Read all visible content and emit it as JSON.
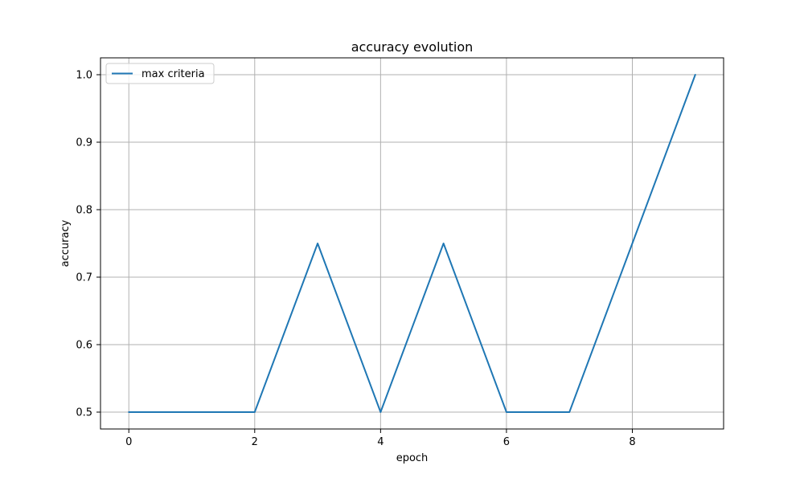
{
  "chart_data": {
    "type": "line",
    "title": "accuracy evolution",
    "xlabel": "epoch",
    "ylabel": "accuracy",
    "xlim": [
      -0.45,
      9.45
    ],
    "ylim": [
      0.475,
      1.025
    ],
    "x_ticks": [
      0,
      2,
      4,
      6,
      8
    ],
    "y_ticks": [
      0.5,
      0.6,
      0.7,
      0.8,
      0.9,
      1.0
    ],
    "x_tick_labels": [
      "0",
      "2",
      "4",
      "6",
      "8"
    ],
    "y_tick_labels": [
      "0.5",
      "0.6",
      "0.7",
      "0.8",
      "0.9",
      "1.0"
    ],
    "grid": true,
    "legend_position": "upper-left",
    "series": [
      {
        "name": "max criteria",
        "color": "#1f77b4",
        "x": [
          0,
          1,
          2,
          3,
          4,
          5,
          6,
          7,
          8,
          9
        ],
        "y": [
          0.5,
          0.5,
          0.5,
          0.75,
          0.5,
          0.75,
          0.5,
          0.5,
          0.75,
          1.0
        ]
      }
    ]
  }
}
